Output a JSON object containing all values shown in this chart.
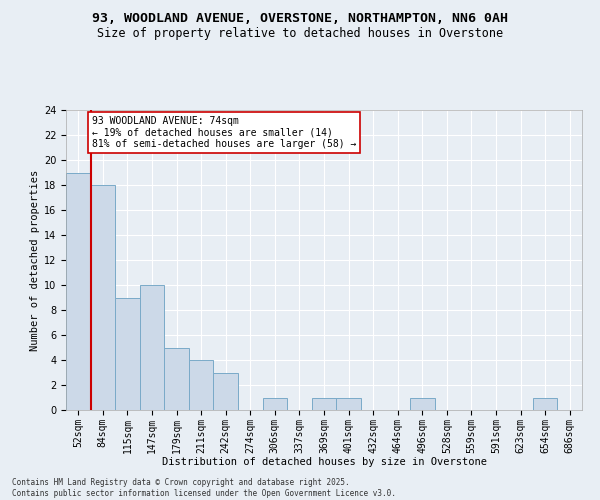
{
  "title": "93, WOODLAND AVENUE, OVERSTONE, NORTHAMPTON, NN6 0AH",
  "subtitle": "Size of property relative to detached houses in Overstone",
  "xlabel": "Distribution of detached houses by size in Overstone",
  "ylabel": "Number of detached properties",
  "categories": [
    "52sqm",
    "84sqm",
    "115sqm",
    "147sqm",
    "179sqm",
    "211sqm",
    "242sqm",
    "274sqm",
    "306sqm",
    "337sqm",
    "369sqm",
    "401sqm",
    "432sqm",
    "464sqm",
    "496sqm",
    "528sqm",
    "559sqm",
    "591sqm",
    "623sqm",
    "654sqm",
    "686sqm"
  ],
  "values": [
    19,
    18,
    9,
    10,
    5,
    4,
    3,
    0,
    1,
    0,
    1,
    1,
    0,
    0,
    1,
    0,
    0,
    0,
    0,
    1,
    0
  ],
  "bar_color": "#ccd9e8",
  "bar_edge_color": "#7aaac8",
  "subject_line_color": "#cc0000",
  "ylim": [
    0,
    24
  ],
  "yticks": [
    0,
    2,
    4,
    6,
    8,
    10,
    12,
    14,
    16,
    18,
    20,
    22,
    24
  ],
  "annotation_text": "93 WOODLAND AVENUE: 74sqm\n← 19% of detached houses are smaller (14)\n81% of semi-detached houses are larger (58) →",
  "annotation_box_color": "#ffffff",
  "annotation_box_edge": "#cc0000",
  "footer_text": "Contains HM Land Registry data © Crown copyright and database right 2025.\nContains public sector information licensed under the Open Government Licence v3.0.",
  "background_color": "#e8eef4",
  "grid_color": "#ffffff",
  "title_fontsize": 9.5,
  "subtitle_fontsize": 8.5,
  "axis_label_fontsize": 7.5,
  "tick_fontsize": 7,
  "footer_fontsize": 5.5,
  "annotation_fontsize": 7
}
